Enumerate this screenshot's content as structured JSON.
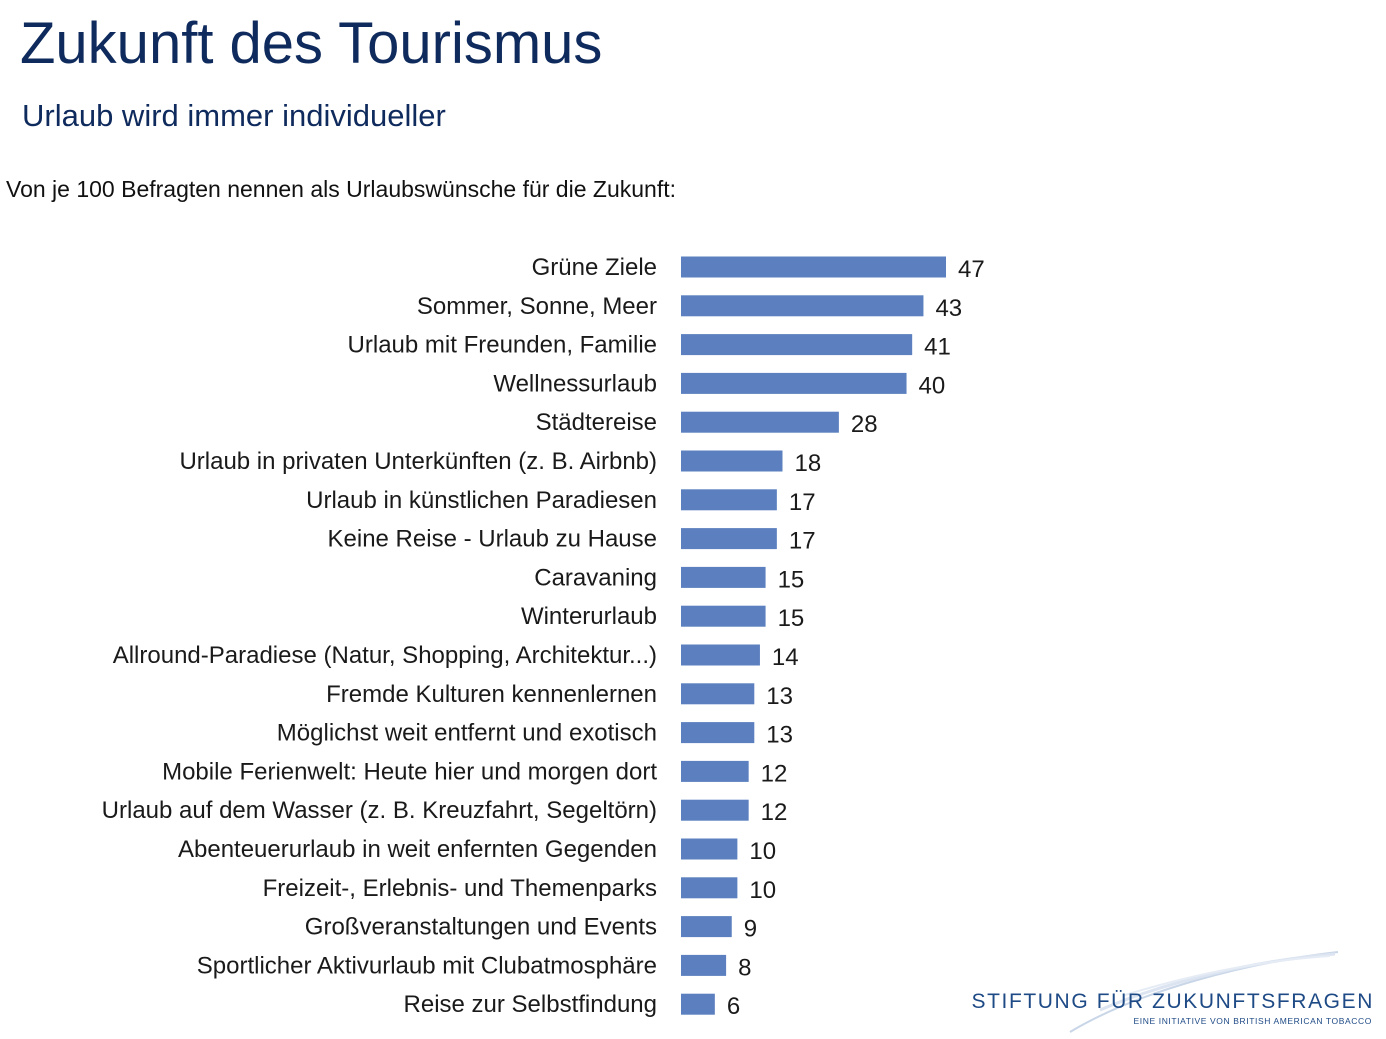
{
  "header": {
    "title": "Zukunft des Tourismus",
    "subtitle": "Urlaub wird immer individueller",
    "intro": "Von je 100 Befragten nennen als Urlaubswünsche für die Zukunft:"
  },
  "logo": {
    "name": "STIFTUNG FÜR ZUKUNFTSFRAGEN",
    "tagline": "EINE INITIATIVE VON BRITISH AMERICAN TOBACCO",
    "icon": "swoosh-icon"
  },
  "colors": {
    "bar": "#5b7fbf",
    "title": "#0f2a5c",
    "logo": "#1e4a86"
  },
  "chart_data": {
    "type": "bar",
    "orientation": "horizontal",
    "title": "",
    "xlabel": "",
    "ylabel": "",
    "xlim": [
      0,
      47
    ],
    "grid": false,
    "categories": [
      "Grüne Ziele",
      "Sommer, Sonne, Meer",
      "Urlaub mit Freunden, Familie",
      "Wellnessurlaub",
      "Städtereise",
      "Urlaub in privaten Unterkünften (z. B. Airbnb)",
      "Urlaub in künstlichen Paradiesen",
      "Keine Reise - Urlaub zu Hause",
      "Caravaning",
      "Winterurlaub",
      "Allround-Paradiese (Natur, Shopping, Architektur...)",
      "Fremde Kulturen kennenlernen",
      "Möglichst weit entfernt und exotisch",
      "Mobile Ferienwelt: Heute hier und morgen dort",
      "Urlaub auf dem Wasser (z. B. Kreuzfahrt, Segeltörn)",
      "Abenteuerurlaub in weit enfernten Gegenden",
      "Freizeit-, Erlebnis- und Themenparks",
      "Großveranstaltungen und Events",
      "Sportlicher Aktivurlaub mit Clubatmosphäre",
      "Reise zur Selbstfindung"
    ],
    "values": [
      47,
      43,
      41,
      40,
      28,
      18,
      17,
      17,
      15,
      15,
      14,
      13,
      13,
      12,
      12,
      10,
      10,
      9,
      8,
      6
    ]
  }
}
